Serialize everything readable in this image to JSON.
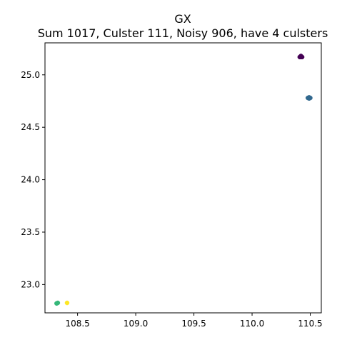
{
  "chart_data": {
    "type": "scatter",
    "title": "GX",
    "subtitle": "Sum 1017, Culster 111, Noisy 906, have 4 culsters",
    "xlabel": "",
    "ylabel": "",
    "xlim": [
      108.22,
      110.595
    ],
    "ylim": [
      22.73,
      25.305
    ],
    "x_ticks": [
      108.5,
      109.0,
      109.5,
      110.0,
      110.5
    ],
    "x_tick_labels": [
      "108.5",
      "109.0",
      "109.5",
      "110.0",
      "110.5"
    ],
    "y_ticks": [
      23.0,
      23.5,
      24.0,
      24.5,
      25.0
    ],
    "y_tick_labels": [
      "23.0",
      "23.5",
      "24.0",
      "24.5",
      "25.0"
    ],
    "grid": false,
    "legend": "none",
    "series": [
      {
        "color": "#440154",
        "points": [
          [
            110.41,
            25.17
          ],
          [
            110.42,
            25.18
          ],
          [
            110.42,
            25.17
          ],
          [
            110.43,
            25.17
          ],
          [
            110.42,
            25.175
          ]
        ]
      },
      {
        "color": "#31688e",
        "points": [
          [
            110.48,
            24.78
          ],
          [
            110.49,
            24.785
          ],
          [
            110.49,
            24.775
          ],
          [
            110.5,
            24.78
          ]
        ]
      },
      {
        "color": "#35b779",
        "points": [
          [
            108.32,
            22.82
          ],
          [
            108.33,
            22.825
          ]
        ]
      },
      {
        "color": "#fde725",
        "points": [
          [
            108.41,
            22.825
          ]
        ]
      }
    ]
  }
}
